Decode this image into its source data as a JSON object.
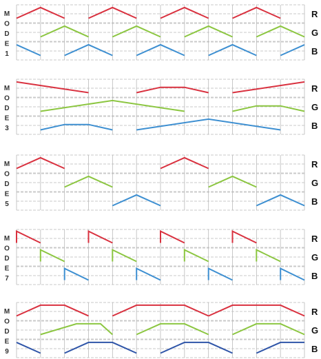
{
  "colors": {
    "R": "#d9313f",
    "G": "#8cc641",
    "B": "#3d8fd1",
    "B_mode9": "#2f55a8",
    "grid": "#b9b9b9"
  },
  "chart_data": [
    {
      "type": "line",
      "mode": "MODE 1",
      "mode_letters": [
        "M",
        "O",
        "D",
        "E",
        "1"
      ],
      "x_divisions": 12,
      "series": [
        {
          "name": "R",
          "values": [
            [
              [
                0,
                0.25
              ],
              [
                1,
                0.85
              ],
              [
                2,
                0.25
              ]
            ],
            [
              [
                3,
                0.25
              ],
              [
                4,
                0.85
              ],
              [
                5,
                0.25
              ]
            ],
            [
              [
                6,
                0.25
              ],
              [
                7,
                0.85
              ],
              [
                8,
                0.25
              ]
            ],
            [
              [
                9,
                0.25
              ],
              [
                10,
                0.85
              ],
              [
                11,
                0.25
              ]
            ]
          ]
        },
        {
          "name": "G",
          "values": [
            [
              [
                1,
                0.25
              ],
              [
                2,
                0.85
              ],
              [
                3,
                0.25
              ]
            ],
            [
              [
                4,
                0.25
              ],
              [
                5,
                0.85
              ],
              [
                6,
                0.25
              ]
            ],
            [
              [
                7,
                0.25
              ],
              [
                8,
                0.85
              ],
              [
                9,
                0.25
              ]
            ],
            [
              [
                10,
                0.25
              ],
              [
                11,
                0.85
              ],
              [
                12,
                0.25
              ]
            ]
          ]
        },
        {
          "name": "B",
          "values": [
            [
              [
                0,
                0.85
              ],
              [
                1,
                0.25
              ]
            ],
            [
              [
                2,
                0.25
              ],
              [
                3,
                0.85
              ],
              [
                4,
                0.25
              ]
            ],
            [
              [
                5,
                0.25
              ],
              [
                6,
                0.85
              ],
              [
                7,
                0.25
              ]
            ],
            [
              [
                8,
                0.25
              ],
              [
                9,
                0.85
              ],
              [
                10,
                0.25
              ]
            ],
            [
              [
                11,
                0.25
              ],
              [
                12,
                0.85
              ]
            ]
          ]
        }
      ]
    },
    {
      "type": "line",
      "mode": "MODE 3",
      "mode_letters": [
        "M",
        "O",
        "D",
        "E",
        "3"
      ],
      "x_divisions": 12,
      "series": [
        {
          "name": "R",
          "values": [
            [
              [
                0,
                0.85
              ],
              [
                3,
                0.25
              ]
            ],
            [
              [
                5,
                0.25
              ],
              [
                6,
                0.55
              ],
              [
                7,
                0.55
              ],
              [
                8,
                0.25
              ]
            ],
            [
              [
                9,
                0.25
              ],
              [
                12,
                0.85
              ]
            ]
          ]
        },
        {
          "name": "G",
          "values": [
            [
              [
                1,
                0.25
              ],
              [
                4,
                0.85
              ],
              [
                7,
                0.25
              ]
            ],
            [
              [
                9,
                0.25
              ],
              [
                10,
                0.55
              ],
              [
                11,
                0.55
              ],
              [
                12,
                0.25
              ]
            ]
          ]
        },
        {
          "name": "B",
          "values": [
            [
              [
                1,
                0.25
              ],
              [
                2,
                0.55
              ],
              [
                3,
                0.55
              ],
              [
                4,
                0.25
              ]
            ],
            [
              [
                5,
                0.25
              ],
              [
                8,
                0.85
              ],
              [
                11,
                0.25
              ]
            ]
          ]
        }
      ]
    },
    {
      "type": "line",
      "mode": "MODE 5",
      "mode_letters": [
        "M",
        "O",
        "D",
        "E",
        "5"
      ],
      "x_divisions": 12,
      "series": [
        {
          "name": "R",
          "values": [
            [
              [
                0,
                0.25
              ],
              [
                1,
                0.85
              ],
              [
                2,
                0.25
              ]
            ],
            [
              [
                6,
                0.25
              ],
              [
                7,
                0.85
              ],
              [
                8,
                0.25
              ]
            ]
          ]
        },
        {
          "name": "G",
          "values": [
            [
              [
                2,
                0.25
              ],
              [
                3,
                0.85
              ],
              [
                4,
                0.25
              ]
            ],
            [
              [
                8,
                0.25
              ],
              [
                9,
                0.85
              ],
              [
                10,
                0.25
              ]
            ]
          ]
        },
        {
          "name": "B",
          "values": [
            [
              [
                4,
                0.25
              ],
              [
                5,
                0.85
              ],
              [
                6,
                0.25
              ]
            ],
            [
              [
                10,
                0.25
              ],
              [
                11,
                0.85
              ],
              [
                12,
                0.25
              ]
            ]
          ]
        }
      ]
    },
    {
      "type": "line",
      "mode": "MODE 7",
      "mode_letters": [
        "M",
        "O",
        "D",
        "E",
        "7"
      ],
      "x_divisions": 12,
      "series": [
        {
          "name": "R",
          "values": [
            [
              [
                0,
                0.25
              ],
              [
                0,
                0.9
              ],
              [
                1,
                0.25
              ]
            ],
            [
              [
                3,
                0.25
              ],
              [
                3,
                0.9
              ],
              [
                4,
                0.25
              ]
            ],
            [
              [
                6,
                0.25
              ],
              [
                6,
                0.9
              ],
              [
                7,
                0.25
              ]
            ],
            [
              [
                9,
                0.25
              ],
              [
                9,
                0.9
              ],
              [
                10,
                0.25
              ]
            ]
          ]
        },
        {
          "name": "G",
          "values": [
            [
              [
                1,
                0.25
              ],
              [
                1,
                0.9
              ],
              [
                2,
                0.25
              ]
            ],
            [
              [
                4,
                0.25
              ],
              [
                4,
                0.9
              ],
              [
                5,
                0.25
              ]
            ],
            [
              [
                7,
                0.25
              ],
              [
                7,
                0.9
              ],
              [
                8,
                0.25
              ]
            ],
            [
              [
                10,
                0.25
              ],
              [
                10,
                0.9
              ],
              [
                11,
                0.25
              ]
            ]
          ]
        },
        {
          "name": "B",
          "values": [
            [
              [
                2,
                0.25
              ],
              [
                2,
                0.9
              ],
              [
                3,
                0.25
              ]
            ],
            [
              [
                5,
                0.25
              ],
              [
                5,
                0.9
              ],
              [
                6,
                0.25
              ]
            ],
            [
              [
                8,
                0.25
              ],
              [
                8,
                0.9
              ],
              [
                9,
                0.25
              ]
            ],
            [
              [
                11,
                0.25
              ],
              [
                11,
                0.9
              ],
              [
                12,
                0.25
              ]
            ]
          ]
        }
      ]
    },
    {
      "type": "line",
      "mode": "MODE 9",
      "mode_letters": [
        "M",
        "O",
        "D",
        "E",
        "9"
      ],
      "x_divisions": 12,
      "series": [
        {
          "name": "R",
          "values": [
            [
              [
                0,
                0.25
              ],
              [
                1,
                0.85
              ],
              [
                2,
                0.85
              ],
              [
                3,
                0.25
              ]
            ],
            [
              [
                4,
                0.25
              ],
              [
                5,
                0.85
              ],
              [
                7,
                0.85
              ],
              [
                8,
                0.25
              ]
            ],
            [
              [
                8,
                0.25
              ],
              [
                9,
                0.85
              ],
              [
                11,
                0.85
              ],
              [
                12,
                0.25
              ]
            ]
          ]
        },
        {
          "name": "G",
          "values": [
            [
              [
                1,
                0.25
              ],
              [
                2.5,
                0.85
              ],
              [
                3.5,
                0.85
              ],
              [
                4,
                0.25
              ]
            ],
            [
              [
                5,
                0.25
              ],
              [
                6,
                0.85
              ],
              [
                7,
                0.85
              ],
              [
                8,
                0.25
              ]
            ],
            [
              [
                9,
                0.25
              ],
              [
                10,
                0.85
              ],
              [
                11,
                0.85
              ],
              [
                12,
                0.25
              ]
            ]
          ]
        },
        {
          "name": "B",
          "values": [
            [
              [
                0,
                0.85
              ],
              [
                1,
                0.25
              ]
            ],
            [
              [
                2,
                0.25
              ],
              [
                3,
                0.85
              ],
              [
                4,
                0.85
              ],
              [
                5,
                0.25
              ]
            ],
            [
              [
                6,
                0.25
              ],
              [
                7,
                0.85
              ],
              [
                8,
                0.85
              ],
              [
                9,
                0.25
              ]
            ],
            [
              [
                10,
                0.25
              ],
              [
                11,
                0.85
              ],
              [
                12,
                0.85
              ]
            ]
          ]
        }
      ]
    }
  ]
}
